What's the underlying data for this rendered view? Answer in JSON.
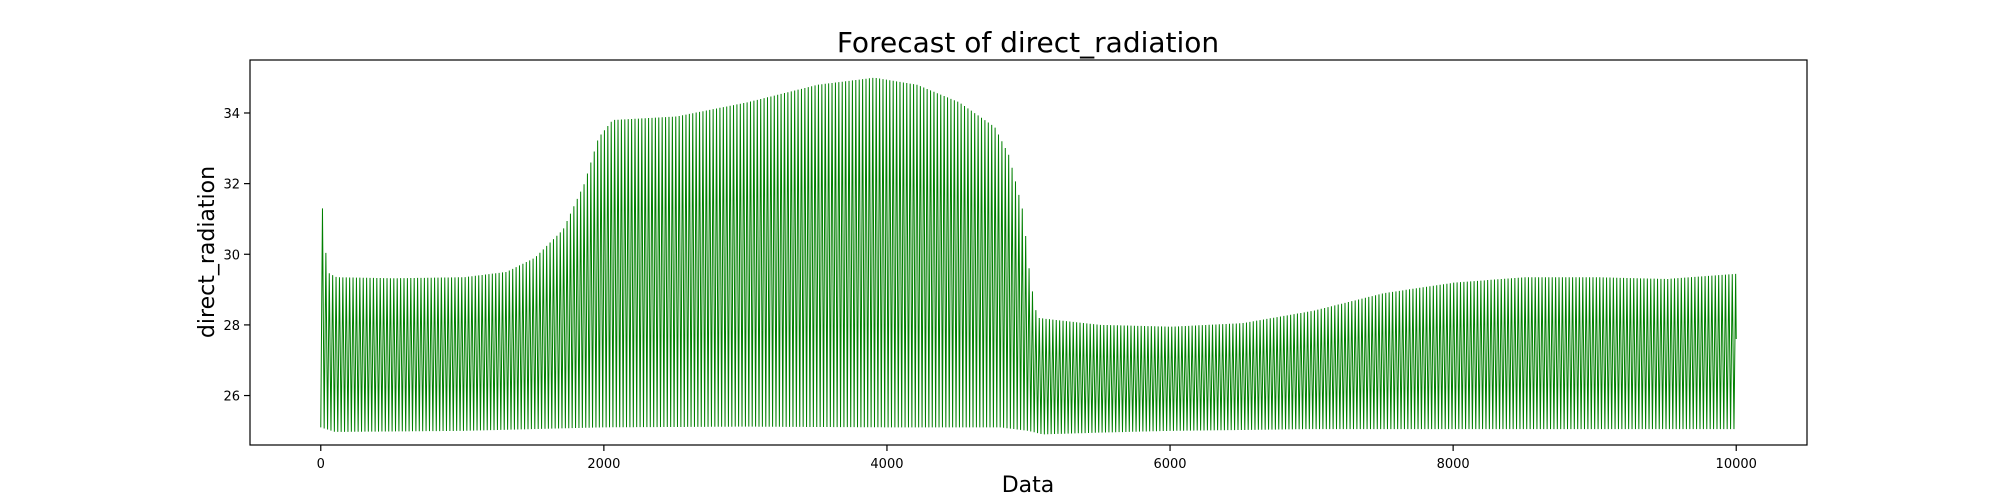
{
  "chart_data": {
    "type": "line",
    "title": "Forecast of direct_radiation",
    "xlabel": "Data",
    "ylabel": "direct_radiation",
    "xlim": [
      -500,
      10500
    ],
    "ylim": [
      24.6,
      35.5
    ],
    "xticks": [
      0,
      2000,
      4000,
      6000,
      8000,
      10000
    ],
    "yticks": [
      26,
      28,
      30,
      32,
      34
    ],
    "grid": false,
    "legend": "none",
    "series_color": "#008000",
    "series": [
      {
        "oscillation_period": 24,
        "upper_envelope": [
          [
            10,
            31.3
          ],
          [
            30,
            29.5
          ],
          [
            100,
            29.35
          ],
          [
            500,
            29.32
          ],
          [
            1000,
            29.35
          ],
          [
            1300,
            29.5
          ],
          [
            1500,
            29.9
          ],
          [
            1700,
            30.7
          ],
          [
            1850,
            32.0
          ],
          [
            1950,
            33.3
          ],
          [
            2050,
            33.8
          ],
          [
            2500,
            33.9
          ],
          [
            3000,
            34.3
          ],
          [
            3500,
            34.8
          ],
          [
            3900,
            35.0
          ],
          [
            4200,
            34.8
          ],
          [
            4500,
            34.3
          ],
          [
            4750,
            33.6
          ],
          [
            4850,
            32.8
          ],
          [
            4950,
            31.2
          ],
          [
            5000,
            29.3
          ],
          [
            5050,
            28.2
          ],
          [
            5500,
            28.0
          ],
          [
            6000,
            27.95
          ],
          [
            6500,
            28.05
          ],
          [
            7000,
            28.4
          ],
          [
            7500,
            28.9
          ],
          [
            8000,
            29.2
          ],
          [
            8500,
            29.35
          ],
          [
            9000,
            29.35
          ],
          [
            9500,
            29.3
          ],
          [
            10000,
            29.45
          ]
        ],
        "lower_envelope": [
          [
            0,
            25.1
          ],
          [
            100,
            24.97
          ],
          [
            1000,
            25.0
          ],
          [
            1500,
            25.05
          ],
          [
            2000,
            25.1
          ],
          [
            3000,
            25.12
          ],
          [
            4000,
            25.1
          ],
          [
            4800,
            25.1
          ],
          [
            5000,
            25.0
          ],
          [
            5100,
            24.9
          ],
          [
            5500,
            24.95
          ],
          [
            6000,
            25.0
          ],
          [
            7000,
            25.05
          ],
          [
            8000,
            25.05
          ],
          [
            9000,
            25.05
          ],
          [
            10000,
            25.05
          ]
        ],
        "last_value": 27.6
      }
    ]
  }
}
